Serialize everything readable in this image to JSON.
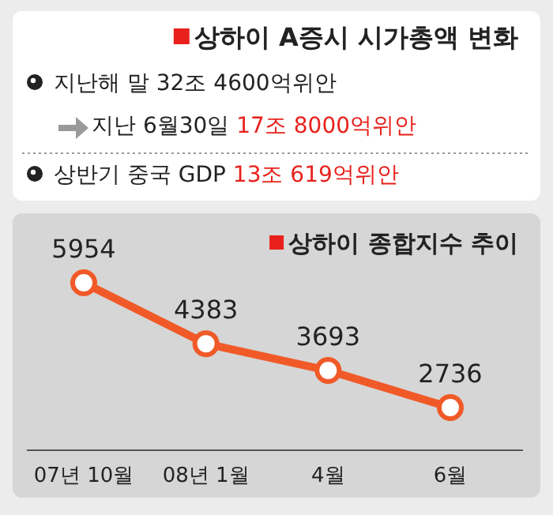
{
  "chart_data": [
    {
      "type": "other",
      "title": "상하이 A증시 시가총액 변화",
      "annotations": [
        "지난해 말 32조 4600억위안",
        "지난 6월30일 17조 8000억위안",
        "상반기 중국 GDP 13조 619억위안"
      ]
    },
    {
      "type": "line",
      "title": "상하이 종합지수 추이",
      "categories": [
        "07년 10월",
        "08년 1월",
        "4월",
        "6월"
      ],
      "series": [
        {
          "color": "#f05a28",
          "values": [
            5954,
            4383,
            3693,
            2736
          ]
        }
      ],
      "data_labels": true,
      "marker": "circle",
      "line_style": "solid"
    }
  ]
}
